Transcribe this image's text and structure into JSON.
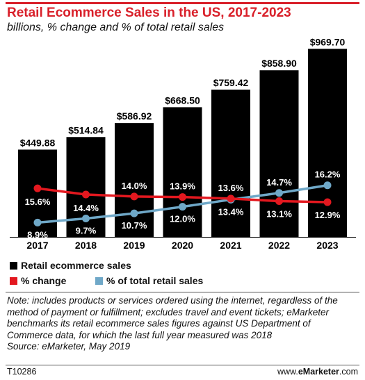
{
  "header": {
    "title": "Retail Ecommerce Sales in the US, 2017-2023",
    "subtitle": "billions, % change and % of total retail sales"
  },
  "chart_data": {
    "type": "bar",
    "categories": [
      "2017",
      "2018",
      "2019",
      "2020",
      "2021",
      "2022",
      "2023"
    ],
    "series": [
      {
        "name": "Retail ecommerce sales",
        "type": "bar",
        "values": [
          449.88,
          514.84,
          586.92,
          668.5,
          759.42,
          858.9,
          969.7
        ],
        "labels": [
          "$449.88",
          "$514.84",
          "$586.92",
          "$668.50",
          "$759.42",
          "$858.90",
          "$969.70"
        ],
        "color": "#000000"
      },
      {
        "name": "% change",
        "type": "line",
        "values": [
          15.6,
          14.4,
          14.0,
          13.9,
          13.6,
          13.1,
          12.9
        ],
        "labels": [
          "15.6%",
          "14.4%",
          "14.0%",
          "13.9%",
          "13.6%",
          "13.1%",
          "12.9%"
        ],
        "color": "#e3181f"
      },
      {
        "name": "% of total retail sales",
        "type": "line",
        "values": [
          8.9,
          9.7,
          10.7,
          12.0,
          13.4,
          14.7,
          16.2
        ],
        "labels": [
          "8.9%",
          "9.7%",
          "10.7%",
          "12.0%",
          "13.4%",
          "14.7%",
          "16.2%"
        ],
        "color": "#6fa8c8"
      }
    ],
    "title": "Retail Ecommerce Sales in the US, 2017-2023",
    "subtitle": "billions, % change and % of total retail sales",
    "legend_position": "bottom-left",
    "grid": false
  },
  "legend": {
    "bar_label": "Retail ecommerce sales",
    "change_label": "% change",
    "share_label": "% of total retail sales"
  },
  "note": {
    "text": "Note: includes products or services ordered using the internet, regardless of the method of payment or fulfillment; excludes travel and event tickets; eMarketer benchmarks its retail ecommerce sales figures against US Department of Commerce data, for which the last full year measured was 2018",
    "source": "Source: eMarketer, May 2019"
  },
  "footer": {
    "code": "T10286",
    "brand_prefix": "www.",
    "brand_name": "eMarketer",
    "brand_suffix": ".com"
  }
}
